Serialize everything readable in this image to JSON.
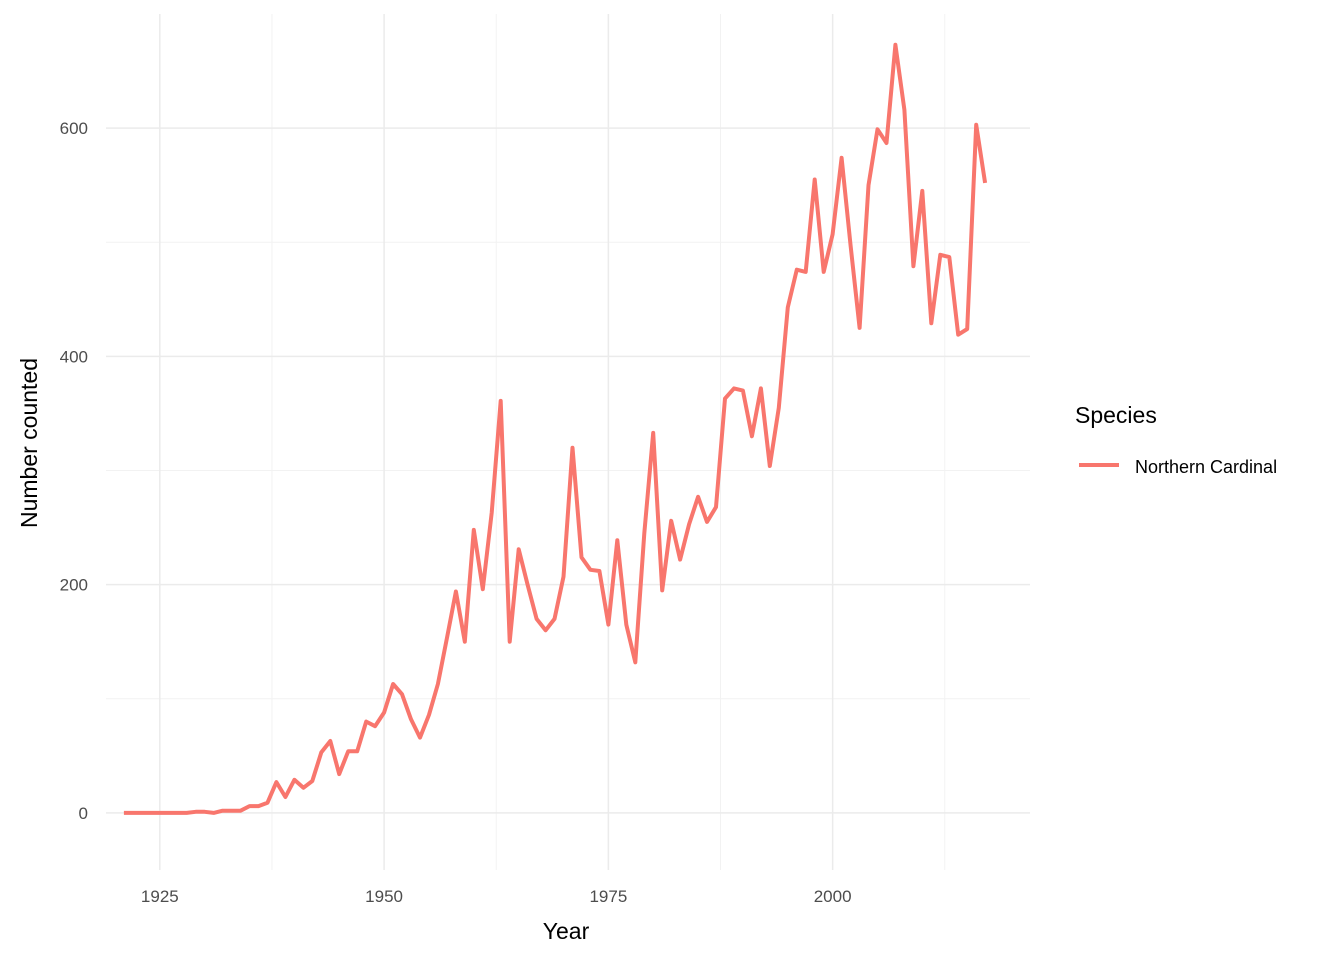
{
  "chart_data": {
    "type": "line",
    "xlabel": "Year",
    "ylabel": "Number counted",
    "xlim": [
      1919,
      2022
    ],
    "ylim": [
      -50,
      700
    ],
    "x_ticks": [
      1925,
      1950,
      1975,
      2000
    ],
    "x_tick_labels": [
      "1925",
      "1950",
      "1975",
      "2000"
    ],
    "y_ticks": [
      0,
      200,
      400,
      600
    ],
    "y_tick_labels": [
      "0",
      "200",
      "400",
      "600"
    ],
    "grid": true,
    "legend": {
      "title": "Species",
      "position": "right"
    },
    "series": [
      {
        "name": "Northern Cardinal",
        "color": "#F8766D",
        "x": [
          1921,
          1922,
          1923,
          1924,
          1925,
          1926,
          1927,
          1928,
          1929,
          1930,
          1931,
          1932,
          1933,
          1934,
          1935,
          1936,
          1937,
          1938,
          1939,
          1940,
          1941,
          1942,
          1943,
          1944,
          1945,
          1946,
          1947,
          1948,
          1949,
          1950,
          1951,
          1952,
          1953,
          1954,
          1955,
          1956,
          1957,
          1958,
          1959,
          1960,
          1961,
          1962,
          1963,
          1964,
          1965,
          1966,
          1967,
          1968,
          1969,
          1970,
          1971,
          1972,
          1973,
          1974,
          1975,
          1976,
          1977,
          1978,
          1979,
          1980,
          1981,
          1982,
          1983,
          1984,
          1985,
          1986,
          1987,
          1988,
          1989,
          1990,
          1991,
          1992,
          1993,
          1994,
          1995,
          1996,
          1997,
          1998,
          1999,
          2000,
          2001,
          2002,
          2003,
          2004,
          2005,
          2006,
          2007,
          2008,
          2009,
          2010,
          2011,
          2012,
          2013,
          2014,
          2015,
          2016,
          2017
        ],
        "values": [
          0,
          0,
          0,
          0,
          0,
          0,
          0,
          0,
          1,
          1,
          0,
          2,
          2,
          2,
          6,
          6,
          9,
          27,
          14,
          29,
          22,
          28,
          53,
          63,
          34,
          54,
          54,
          80,
          76,
          88,
          113,
          104,
          82,
          66,
          86,
          113,
          153,
          194,
          150,
          248,
          196,
          263,
          361,
          150,
          231,
          200,
          170,
          160,
          170,
          207,
          320,
          224,
          213,
          212,
          165,
          239,
          165,
          132,
          245,
          333,
          195,
          256,
          222,
          253,
          277,
          255,
          268,
          363,
          372,
          370,
          330,
          372,
          304,
          355,
          443,
          476,
          474,
          555,
          474,
          507,
          574,
          497,
          425,
          550,
          599,
          587,
          673,
          616,
          479,
          545,
          429,
          489,
          487,
          419,
          424,
          603,
          552
        ]
      }
    ]
  }
}
